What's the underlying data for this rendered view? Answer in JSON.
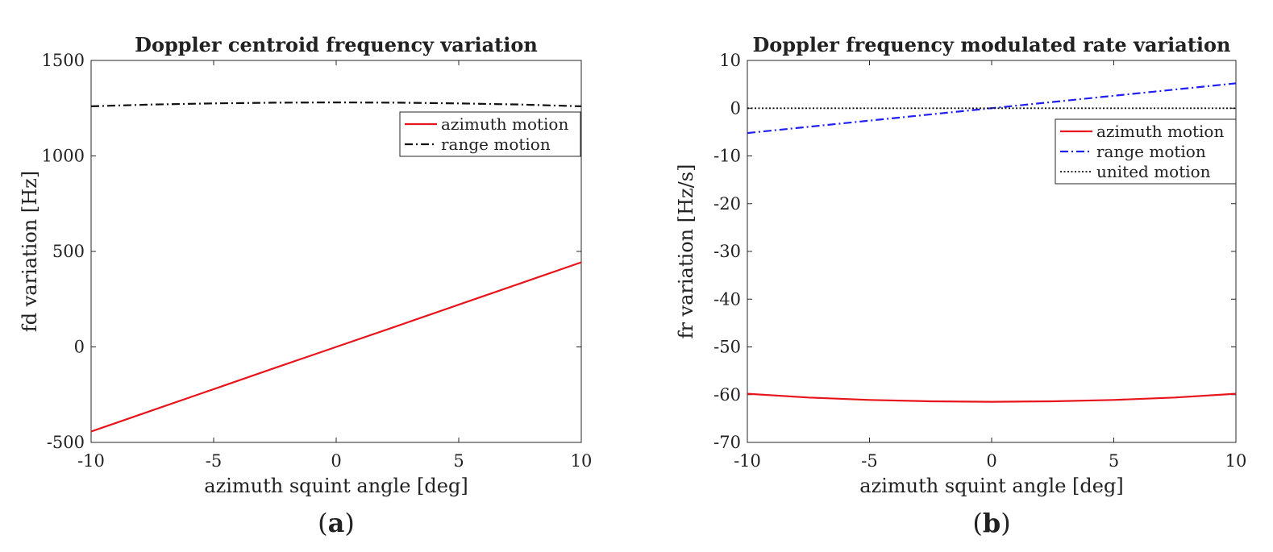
{
  "chart_data": [
    {
      "type": "line",
      "title": "Doppler centroid frequency variation",
      "xlabel": "azimuth squint angle [deg]",
      "ylabel": "fd variation [Hz]",
      "xlim": [
        -10,
        10
      ],
      "ylim": [
        -500,
        1500
      ],
      "xticks": [
        -10,
        -5,
        0,
        5,
        10
      ],
      "xtick_labels": [
        "-10",
        "-5",
        "0",
        "5",
        "10"
      ],
      "yticks": [
        -500,
        0,
        500,
        1000,
        1500
      ],
      "ytick_labels": [
        "-500",
        "0",
        "500",
        "1000",
        "1500"
      ],
      "legend_position": "top-right",
      "panel_label": "a",
      "series": [
        {
          "name": "azimuth motion",
          "color": "#e8141b",
          "style": "solid",
          "x": [
            -10,
            -7.5,
            -5,
            -2.5,
            0,
            2.5,
            5,
            7.5,
            10
          ],
          "y": [
            -443,
            -332,
            -221,
            -110,
            0,
            110,
            221,
            332,
            443
          ]
        },
        {
          "name": "range motion",
          "color": "#111111",
          "style": "dashdot",
          "x": [
            -10,
            -7.5,
            -5,
            -2.5,
            0,
            2.5,
            5,
            7.5,
            10
          ],
          "y": [
            1260,
            1269,
            1275,
            1279,
            1280,
            1279,
            1275,
            1269,
            1260
          ]
        }
      ]
    },
    {
      "type": "line",
      "title": "Doppler frequency modulated rate variation",
      "xlabel": "azimuth squint angle [deg]",
      "ylabel": "fr variation [Hz/s]",
      "xlim": [
        -10,
        10
      ],
      "ylim": [
        -70,
        10
      ],
      "xticks": [
        -10,
        -5,
        0,
        5,
        10
      ],
      "xtick_labels": [
        "-10",
        "-5",
        "0",
        "5",
        "10"
      ],
      "yticks": [
        -70,
        -60,
        -50,
        -40,
        -30,
        -20,
        -10,
        0,
        10
      ],
      "ytick_labels": [
        "-70",
        "-60",
        "-50",
        "-40",
        "-30",
        "-20",
        "-10",
        "0",
        "10"
      ],
      "legend_position": "top-right",
      "panel_label": "b",
      "series": [
        {
          "name": "azimuth motion",
          "color": "#e8141b",
          "style": "solid",
          "x": [
            -10,
            -7.5,
            -5,
            -2.5,
            0,
            2.5,
            5,
            7.5,
            10
          ],
          "y": [
            -59.8,
            -60.6,
            -61.1,
            -61.4,
            -61.5,
            -61.4,
            -61.1,
            -60.6,
            -59.8
          ]
        },
        {
          "name": "range motion",
          "color": "#1f1ff0",
          "style": "dashdot",
          "x": [
            -10,
            10
          ],
          "y": [
            -5.2,
            5.2
          ]
        },
        {
          "name": "united motion",
          "color": "#111111",
          "style": "dotted",
          "x": [
            -10,
            10
          ],
          "y": [
            0,
            0
          ]
        }
      ]
    }
  ]
}
